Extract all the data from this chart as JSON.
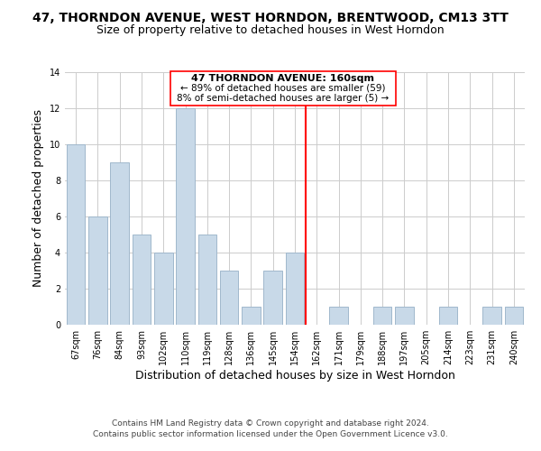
{
  "title": "47, THORNDON AVENUE, WEST HORNDON, BRENTWOOD, CM13 3TT",
  "subtitle": "Size of property relative to detached houses in West Horndon",
  "xlabel": "Distribution of detached houses by size in West Horndon",
  "ylabel": "Number of detached properties",
  "footer_line1": "Contains HM Land Registry data © Crown copyright and database right 2024.",
  "footer_line2": "Contains public sector information licensed under the Open Government Licence v3.0.",
  "bin_labels": [
    "67sqm",
    "76sqm",
    "84sqm",
    "93sqm",
    "102sqm",
    "110sqm",
    "119sqm",
    "128sqm",
    "136sqm",
    "145sqm",
    "154sqm",
    "162sqm",
    "171sqm",
    "179sqm",
    "188sqm",
    "197sqm",
    "205sqm",
    "214sqm",
    "223sqm",
    "231sqm",
    "240sqm"
  ],
  "bar_heights": [
    10,
    6,
    9,
    5,
    4,
    12,
    5,
    3,
    1,
    3,
    4,
    0,
    1,
    0,
    1,
    1,
    0,
    1,
    0,
    1,
    1
  ],
  "bar_color": "#c8d9e8",
  "bar_edge_color": "#a0b8cc",
  "highlight_line_color": "red",
  "annotation_box_title": "47 THORNDON AVENUE: 160sqm",
  "annotation_line1": "← 89% of detached houses are smaller (59)",
  "annotation_line2": "8% of semi-detached houses are larger (5) →",
  "ylim": [
    0,
    14
  ],
  "yticks": [
    0,
    2,
    4,
    6,
    8,
    10,
    12,
    14
  ],
  "background_color": "#ffffff",
  "grid_color": "#cccccc",
  "title_fontsize": 10,
  "subtitle_fontsize": 9,
  "axis_label_fontsize": 9,
  "tick_fontsize": 7,
  "annotation_fontsize": 8,
  "footer_fontsize": 6.5
}
